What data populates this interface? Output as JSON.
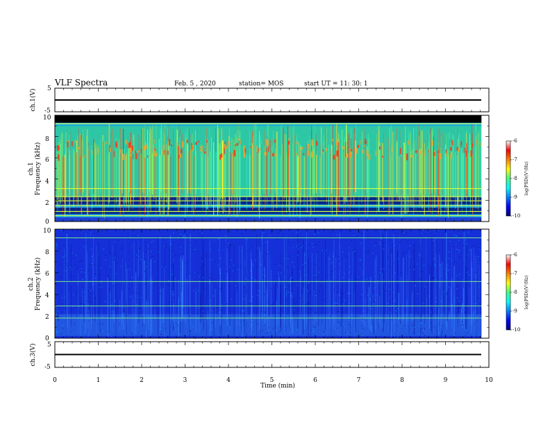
{
  "header": {
    "title": "VLF Spectra",
    "date": "Feb. 5  , 2020",
    "station": "station= MOS",
    "start": "start  UT =   11: 30: 1"
  },
  "chart_data": [
    {
      "type": "line",
      "name": "ch1-voltage",
      "ylabel": "ch.1(V)",
      "ylim": [
        -5,
        5
      ],
      "ytick_labels": [
        "5",
        "-5"
      ],
      "xlim": [
        0,
        10
      ],
      "line_value": 0
    },
    {
      "type": "heatmap",
      "name": "ch1-spectrogram",
      "ylabel_top": "ch.1",
      "ylabel": "Frequency  (kHz)",
      "ylim": [
        0,
        10
      ],
      "ytick_labels": [
        "0",
        "2",
        "4",
        "6",
        "8",
        "10"
      ],
      "xlim": [
        0,
        10
      ],
      "data_end_min": 9.83,
      "noise_band_khz": [
        9.3,
        10
      ],
      "harmonic_lines_khz": [
        0.55,
        0.95,
        1.5,
        1.95,
        2.35,
        3.1,
        9.2
      ],
      "colorbar": {
        "label": "log(PSD)(V²/Hz)",
        "range": [
          -10,
          -6
        ],
        "tick_labels": [
          "-6",
          "-7",
          "-8",
          "-9",
          "-10"
        ]
      }
    },
    {
      "type": "heatmap",
      "name": "ch2-spectrogram",
      "ylabel_top": "ch.2",
      "ylabel": "Frequency  (kHz)",
      "ylim": [
        0,
        10
      ],
      "ytick_labels": [
        "0",
        "2",
        "4",
        "6",
        "8",
        "10"
      ],
      "xlim": [
        0,
        10
      ],
      "data_end_min": 9.83,
      "harmonic_lines_khz": [
        1.85,
        2.95,
        5.2,
        9.2
      ],
      "colorbar": {
        "label": "log(PSD)(V²/Hz)",
        "range": [
          -10,
          -6
        ],
        "tick_labels": [
          "-6",
          "-7",
          "-8",
          "-9",
          "-10"
        ]
      }
    },
    {
      "type": "line",
      "name": "ch3-voltage",
      "ylabel": "ch.3(V)",
      "ylim": [
        -5,
        5
      ],
      "ytick_labels": [
        "5",
        "-5"
      ],
      "xlim": [
        0,
        10
      ],
      "line_value": 0
    }
  ],
  "xaxis": {
    "label": "Time  (min)",
    "tick_labels": [
      "0",
      "1",
      "2",
      "3",
      "4",
      "5",
      "6",
      "7",
      "8",
      "9",
      "10"
    ]
  }
}
